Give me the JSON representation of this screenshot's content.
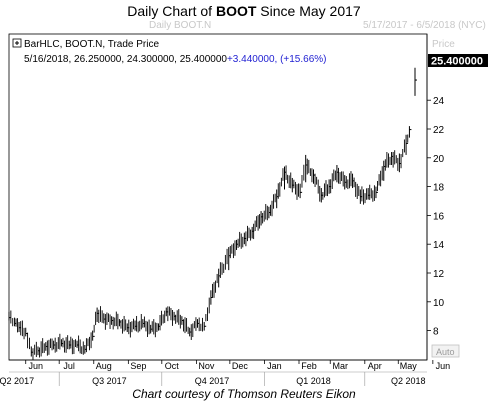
{
  "header": {
    "title_prefix": "Daily Chart of ",
    "title_ticker": "BOOT",
    "title_suffix": " Since May 2017",
    "subtitle_left": "Daily BOOT.N",
    "subtitle_right": "5/17/2017 - 6/5/2018 (NYC)"
  },
  "legend": {
    "series_label": "BarHLC, BOOT.N, Trade Price",
    "ohlc_text": "5/16/2018, 26.250000, 24.300000, 25.400000",
    "change_text": "+3.440000, (+15.66%)"
  },
  "price_axis": {
    "header": "Price",
    "last_value": "25.400000",
    "auto_label": "Auto",
    "ticks": [
      "8",
      "10",
      "12",
      "14",
      "16",
      "18",
      "20",
      "22",
      "24"
    ]
  },
  "time_axis": {
    "months": [
      "Jun",
      "Jul",
      "Aug",
      "Sep",
      "Oct",
      "Nov",
      "Dec",
      "Jan",
      "Feb",
      "Mar",
      "Apr",
      "May",
      "Jun"
    ],
    "quarters": [
      "Q2 2017",
      "Q3 2017",
      "Q4 2017",
      "Q1 2018",
      "Q2 2018"
    ]
  },
  "caption": "Chart courtesy of Thomson Reuters Eikon",
  "colors": {
    "bar": "#000000",
    "change_text": "#1f1fd2",
    "last_value_box": "#000000",
    "axis_label_faint": "#c8c8c8"
  },
  "chart_data": {
    "type": "bar",
    "subtype": "HLC bars",
    "title": "Daily Chart of BOOT Since May 2017",
    "ylim": [
      6,
      26.5
    ],
    "grid": false,
    "series": [
      {
        "name": "BOOT.N",
        "points": [
          [
            "2017-05-17",
            8.7,
            9.3,
            8.9
          ],
          [
            "2017-05-22",
            8.3,
            8.9,
            8.5
          ],
          [
            "2017-05-26",
            7.9,
            8.6,
            8.2
          ],
          [
            "2017-06-01",
            7.6,
            8.2,
            7.8
          ],
          [
            "2017-06-06",
            6.2,
            6.9,
            6.5
          ],
          [
            "2017-06-12",
            6.3,
            6.9,
            6.6
          ],
          [
            "2017-06-19",
            6.6,
            7.2,
            6.9
          ],
          [
            "2017-06-26",
            6.7,
            7.3,
            7.0
          ],
          [
            "2017-07-03",
            6.9,
            7.4,
            7.1
          ],
          [
            "2017-07-10",
            6.7,
            7.3,
            7.0
          ],
          [
            "2017-07-17",
            6.8,
            7.3,
            7.0
          ],
          [
            "2017-07-24",
            6.4,
            7.0,
            6.7
          ],
          [
            "2017-07-31",
            7.3,
            8.0,
            7.6
          ],
          [
            "2017-08-04",
            8.6,
            9.6,
            9.2
          ],
          [
            "2017-08-10",
            8.5,
            9.2,
            8.8
          ],
          [
            "2017-08-17",
            8.4,
            9.0,
            8.7
          ],
          [
            "2017-08-24",
            8.3,
            8.8,
            8.6
          ],
          [
            "2017-08-31",
            7.9,
            8.5,
            8.2
          ],
          [
            "2017-09-07",
            8.0,
            8.7,
            8.3
          ],
          [
            "2017-09-14",
            8.2,
            8.8,
            8.5
          ],
          [
            "2017-09-21",
            7.8,
            8.4,
            8.1
          ],
          [
            "2017-09-28",
            8.0,
            8.5,
            8.3
          ],
          [
            "2017-10-05",
            9.0,
            9.6,
            9.3
          ],
          [
            "2017-10-12",
            8.7,
            9.3,
            9.0
          ],
          [
            "2017-10-19",
            8.4,
            9.0,
            8.7
          ],
          [
            "2017-10-26",
            7.6,
            8.2,
            7.9
          ],
          [
            "2017-11-02",
            8.2,
            8.8,
            8.5
          ],
          [
            "2017-11-08",
            8.0,
            8.6,
            8.3
          ],
          [
            "2017-11-14",
            9.8,
            10.8,
            10.3
          ],
          [
            "2017-11-21",
            11.0,
            12.3,
            11.8
          ],
          [
            "2017-11-30",
            12.2,
            13.8,
            13.2
          ],
          [
            "2017-12-07",
            13.6,
            14.3,
            14.0
          ],
          [
            "2017-12-14",
            14.0,
            14.8,
            14.4
          ],
          [
            "2017-12-21",
            14.4,
            15.2,
            14.9
          ],
          [
            "2017-12-29",
            15.3,
            16.3,
            15.9
          ],
          [
            "2018-01-05",
            15.8,
            16.6,
            16.2
          ],
          [
            "2018-01-12",
            16.5,
            17.8,
            17.3
          ],
          [
            "2018-01-19",
            17.8,
            19.4,
            19.0
          ],
          [
            "2018-01-26",
            17.6,
            18.6,
            18.1
          ],
          [
            "2018-02-02",
            17.2,
            18.2,
            17.6
          ],
          [
            "2018-02-07",
            18.3,
            20.2,
            19.5
          ],
          [
            "2018-02-14",
            18.2,
            19.2,
            18.8
          ],
          [
            "2018-02-21",
            16.9,
            17.9,
            17.4
          ],
          [
            "2018-02-28",
            17.5,
            18.5,
            18.0
          ],
          [
            "2018-03-07",
            18.3,
            19.5,
            19.0
          ],
          [
            "2018-03-14",
            17.8,
            18.8,
            18.3
          ],
          [
            "2018-03-21",
            17.9,
            18.9,
            18.4
          ],
          [
            "2018-03-28",
            16.8,
            17.8,
            17.3
          ],
          [
            "2018-04-04",
            17.1,
            17.9,
            17.4
          ],
          [
            "2018-04-11",
            17.2,
            18.0,
            17.6
          ],
          [
            "2018-04-18",
            18.4,
            19.8,
            19.4
          ],
          [
            "2018-04-25",
            19.5,
            20.4,
            20.1
          ],
          [
            "2018-05-02",
            19.0,
            20.3,
            19.6
          ],
          [
            "2018-05-08",
            20.2,
            21.6,
            21.0
          ],
          [
            "2018-05-11",
            21.4,
            22.2,
            21.96
          ],
          [
            "2018-05-16",
            24.3,
            26.25,
            25.4
          ]
        ]
      }
    ]
  }
}
